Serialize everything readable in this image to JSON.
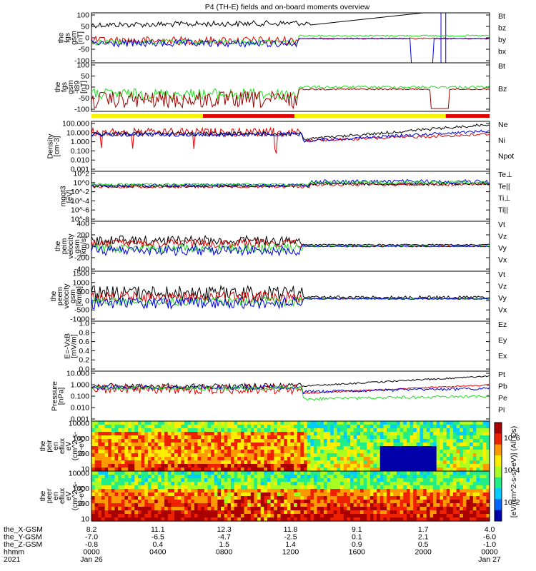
{
  "title": "P4 (TH-E) fields and on-board moments overview",
  "colors": {
    "black": "#000000",
    "red": "#e00000",
    "green": "#22dd22",
    "blue": "#0000dd",
    "yellow": "#f7f300",
    "darkred": "#9a0000"
  },
  "chart_data": {
    "type": "line",
    "panels": [
      {
        "id": "fgs_gsm",
        "ylabel": [
          "the",
          "fgs",
          "gsm",
          "[nT]"
        ],
        "yticks": [
          "100",
          "50",
          "0",
          "-50",
          "-100"
        ],
        "ylim": [
          -100,
          100
        ],
        "scale": "linear",
        "legend": [
          {
            "label": "Bt",
            "color": "black"
          },
          {
            "label": "bz",
            "color": "red"
          },
          {
            "label": "by",
            "color": "green"
          },
          {
            "label": "bx",
            "color": "blue"
          }
        ]
      },
      {
        "id": "fgs_gsm_t89",
        "ylabel": [
          "the",
          "fgs",
          "gsm",
          "-t89",
          "[nT]"
        ],
        "yticks": [
          "100",
          "50",
          "0",
          "-50",
          "-100"
        ],
        "ylim": [
          -120,
          100
        ],
        "scale": "linear",
        "legend": [
          {
            "label": "Bt",
            "color": "black"
          },
          {
            "label": "Bz",
            "color": "darkred"
          }
        ]
      },
      {
        "id": "density",
        "ylabel": [
          "Density",
          "[cm-3]"
        ],
        "yticks": [
          "100.000",
          "10.000",
          "1.000",
          "0.100",
          "0.010",
          "0.001"
        ],
        "ylim": [
          0.001,
          300
        ],
        "scale": "log",
        "legend": [
          {
            "label": "Ne",
            "color": "red"
          },
          {
            "label": "Ni",
            "color": "black"
          },
          {
            "label": "Npot",
            "color": "blue"
          }
        ]
      },
      {
        "id": "temperature",
        "ylabel": [
          "mgqt3",
          "[eV]"
        ],
        "yticks": [
          "10^2",
          "10^0",
          "10^-2",
          "10^-4",
          "10^-6",
          "10^-8"
        ],
        "ylim": [
          1e-09,
          1000.0
        ],
        "scale": "log",
        "legend": [
          {
            "label": "Te⊥",
            "color": "red"
          },
          {
            "label": "Te||",
            "color": "black"
          },
          {
            "label": "Ti⊥",
            "color": "blue"
          },
          {
            "label": "Ti||",
            "color": "green"
          }
        ]
      },
      {
        "id": "peim_velocity",
        "ylabel": [
          "the",
          "peim",
          "velocity",
          "gsm",
          "[km/s]"
        ],
        "yticks": [
          "400",
          "200",
          "0",
          "-200",
          "-400"
        ],
        "ylim": [
          -400,
          400
        ],
        "scale": "linear",
        "legend": [
          {
            "label": "Vt",
            "color": "black"
          },
          {
            "label": "Vz",
            "color": "red"
          },
          {
            "label": "Vy",
            "color": "green"
          },
          {
            "label": "Vx",
            "color": "blue"
          }
        ]
      },
      {
        "id": "peem_velocity",
        "ylabel": [
          "the",
          "peem",
          "velocity",
          "gsm",
          "[km/s]"
        ],
        "yticks": [
          "1500",
          "1000",
          "500",
          "0",
          "-500",
          "-1000"
        ],
        "ylim": [
          -1200,
          1500
        ],
        "scale": "linear",
        "legend": [
          {
            "label": "Vt",
            "color": "black"
          },
          {
            "label": "Vz",
            "color": "red"
          },
          {
            "label": "Vy",
            "color": "green"
          },
          {
            "label": "Vx",
            "color": "blue"
          }
        ]
      },
      {
        "id": "efield",
        "ylabel": [
          "E=-VxB",
          "[mV/m]"
        ],
        "yticks": [
          "1.0",
          "0.8",
          "0.6",
          "0.4",
          "0.2",
          "0.0"
        ],
        "ylim": [
          0,
          1
        ],
        "scale": "linear",
        "legend": [
          {
            "label": "Ez",
            "color": "red"
          },
          {
            "label": "Ey",
            "color": "green"
          },
          {
            "label": "Ex",
            "color": "blue"
          }
        ]
      },
      {
        "id": "pressure",
        "ylabel": [
          "Pressure",
          "[nPa]"
        ],
        "yticks": [
          "10.000",
          "1.000",
          "0.100",
          "0.010",
          "0.001"
        ],
        "ylim": [
          0.0005,
          40
        ],
        "scale": "log",
        "legend": [
          {
            "label": "Pt",
            "color": "black"
          },
          {
            "label": "Pb",
            "color": "red"
          },
          {
            "label": "Pe",
            "color": "green"
          },
          {
            "label": "Pi",
            "color": "blue"
          }
        ]
      },
      {
        "id": "peir_eflux",
        "ylabel": [
          "the",
          "peir",
          "en",
          "eflux",
          "eV",
          "(cm^2-s-",
          "sr-eV)"
        ],
        "yticks": [
          "10000",
          "1000",
          "100",
          "10"
        ],
        "scale": "log",
        "kind": "spectrogram"
      },
      {
        "id": "peer_eflux",
        "ylabel": [
          "the",
          "peer",
          "en",
          "eflux",
          "eV",
          "(cm^2-s-",
          "sr-eV)"
        ],
        "yticks": [
          "10000",
          "1000",
          "100",
          "10"
        ],
        "scale": "log",
        "kind": "spectrogram"
      }
    ],
    "colorbar": {
      "label": "[eV/(cm^2-s-sr-eV)]",
      "top_label": "[eV/(cm^2-s-sr-eV)] (All Qs)",
      "ticks": [
        "10^6",
        "10^4",
        "10^2"
      ]
    },
    "x_axis": {
      "rows": [
        {
          "name": "the_X-GSM",
          "values": [
            "8.2",
            "11.1",
            "12.3",
            "11.8",
            "9.1",
            "1.7",
            "4.0"
          ]
        },
        {
          "name": "the_Y-GSM",
          "values": [
            "-7.0",
            "-6.5",
            "-4.7",
            "-2.5",
            "0.1",
            "2.1",
            "-6.0"
          ]
        },
        {
          "name": "the_Z-GSM",
          "values": [
            "-0.8",
            "0.4",
            "1.5",
            "1.4",
            "0.9",
            "0.5",
            "-1.0"
          ]
        },
        {
          "name": "hhmm",
          "values": [
            "0000",
            "0400",
            "0800",
            "1200",
            "1600",
            "2000",
            "0000"
          ]
        },
        {
          "name": "2021",
          "values": [
            "Jan 26",
            "",
            "",
            "",
            "",
            "",
            "Jan 27"
          ]
        }
      ]
    },
    "mode_bar": [
      {
        "from": 0,
        "to": 0.28,
        "color": "yellow"
      },
      {
        "from": 0.28,
        "to": 0.51,
        "color": "red"
      },
      {
        "from": 0.51,
        "to": 0.89,
        "color": "yellow"
      },
      {
        "from": 0.89,
        "to": 1.0,
        "color": "red"
      }
    ]
  }
}
